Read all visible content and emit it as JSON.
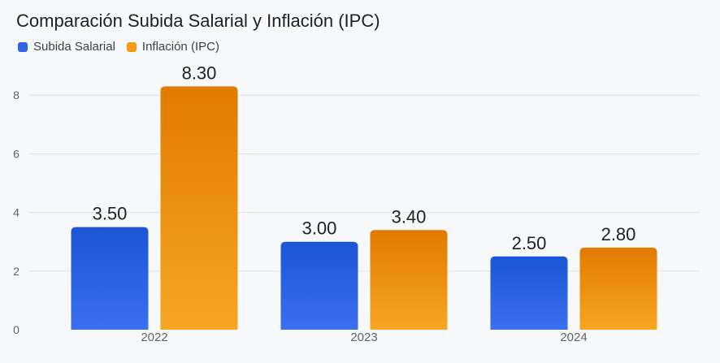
{
  "chart_data": {
    "type": "bar",
    "title": "Comparación Subida Salarial y Inflación (IPC)",
    "categories": [
      "2022",
      "2023",
      "2024"
    ],
    "series": [
      {
        "name": "Subida Salarial",
        "values": [
          3.5,
          3.0,
          2.5
        ],
        "labels": [
          "3.50",
          "3.00",
          "2.50"
        ],
        "color_top": "#1a56d6",
        "color_bottom": "#3b6ff0"
      },
      {
        "name": "Inflación (IPC)",
        "values": [
          8.3,
          3.4,
          2.8
        ],
        "labels": [
          "8.30",
          "3.40",
          "2.80"
        ],
        "color_top": "#e07a00",
        "color_bottom": "#f7a623"
      }
    ],
    "y_ticks": [
      "0",
      "2",
      "4",
      "6",
      "8"
    ],
    "ylim": [
      0,
      8.6
    ],
    "grid": true,
    "legend_position": "top-left"
  }
}
